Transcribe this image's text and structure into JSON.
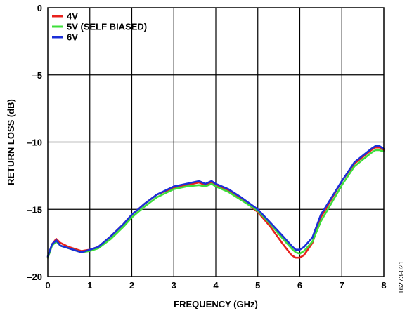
{
  "chart_data": {
    "type": "line",
    "xlabel": "FREQUENCY (GHz)",
    "ylabel": "RETURN LOSS (dB)",
    "xlim": [
      0,
      8
    ],
    "ylim": [
      -20,
      0
    ],
    "xticks": [
      "0",
      "1",
      "2",
      "3",
      "4",
      "5",
      "6",
      "7",
      "8"
    ],
    "yticks": [
      "0",
      "–5",
      "–10",
      "–15",
      "–20"
    ],
    "grid": true,
    "legend_position": "top-left",
    "figure_id": "16273-021",
    "series": [
      {
        "name": "4V",
        "color": "#e8211c",
        "x": [
          0,
          0.1,
          0.2,
          0.3,
          0.5,
          0.8,
          1.0,
          1.2,
          1.5,
          1.8,
          2.0,
          2.3,
          2.6,
          3.0,
          3.3,
          3.6,
          3.75,
          3.9,
          4.0,
          4.3,
          4.6,
          5.0,
          5.3,
          5.6,
          5.8,
          5.9,
          6.0,
          6.1,
          6.3,
          6.5,
          7.0,
          7.3,
          7.5,
          7.7,
          7.8,
          7.9,
          8.0
        ],
        "y": [
          -18.6,
          -17.6,
          -17.2,
          -17.5,
          -17.8,
          -18.1,
          -18.0,
          -17.8,
          -17.0,
          -16.1,
          -15.4,
          -14.6,
          -13.9,
          -13.4,
          -13.2,
          -13.0,
          -13.2,
          -13.0,
          -13.2,
          -13.6,
          -14.2,
          -15.2,
          -16.3,
          -17.6,
          -18.4,
          -18.6,
          -18.6,
          -18.4,
          -17.5,
          -15.6,
          -12.9,
          -11.6,
          -11.1,
          -10.6,
          -10.4,
          -10.4,
          -10.6
        ]
      },
      {
        "name": "5V (SELF BIASED)",
        "color": "#3ddf3a",
        "x": [
          0,
          0.1,
          0.2,
          0.3,
          0.5,
          0.8,
          1.0,
          1.2,
          1.5,
          1.8,
          2.0,
          2.3,
          2.6,
          3.0,
          3.3,
          3.6,
          3.75,
          3.9,
          4.0,
          4.3,
          4.6,
          5.0,
          5.3,
          5.6,
          5.8,
          5.9,
          6.0,
          6.1,
          6.3,
          6.5,
          7.0,
          7.3,
          7.5,
          7.7,
          7.8,
          7.9,
          8.0
        ],
        "y": [
          -18.6,
          -17.7,
          -17.4,
          -17.7,
          -17.9,
          -18.2,
          -18.1,
          -17.9,
          -17.2,
          -16.3,
          -15.6,
          -14.8,
          -14.1,
          -13.5,
          -13.3,
          -13.2,
          -13.3,
          -13.1,
          -13.3,
          -13.7,
          -14.3,
          -15.1,
          -16.1,
          -17.2,
          -17.9,
          -18.2,
          -18.3,
          -18.1,
          -17.4,
          -15.9,
          -13.2,
          -11.8,
          -11.3,
          -10.8,
          -10.6,
          -10.6,
          -10.7
        ]
      },
      {
        "name": "6V",
        "color": "#1b2fd8",
        "x": [
          0,
          0.1,
          0.2,
          0.3,
          0.5,
          0.8,
          1.0,
          1.2,
          1.5,
          1.8,
          2.0,
          2.3,
          2.6,
          3.0,
          3.3,
          3.6,
          3.75,
          3.9,
          4.0,
          4.3,
          4.6,
          5.0,
          5.3,
          5.6,
          5.8,
          5.9,
          6.0,
          6.1,
          6.3,
          6.5,
          7.0,
          7.3,
          7.5,
          7.7,
          7.8,
          7.9,
          8.0
        ],
        "y": [
          -18.5,
          -17.6,
          -17.3,
          -17.7,
          -17.9,
          -18.2,
          -18.0,
          -17.8,
          -17.0,
          -16.1,
          -15.4,
          -14.6,
          -13.9,
          -13.3,
          -13.1,
          -12.9,
          -13.1,
          -12.9,
          -13.1,
          -13.5,
          -14.1,
          -15.0,
          -16.0,
          -17.0,
          -17.7,
          -18.0,
          -18.0,
          -17.8,
          -17.1,
          -15.4,
          -12.9,
          -11.5,
          -11.0,
          -10.5,
          -10.3,
          -10.3,
          -10.5
        ]
      }
    ]
  }
}
